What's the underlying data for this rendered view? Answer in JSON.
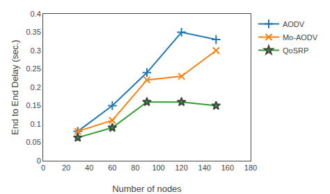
{
  "chart_data": {
    "type": "line",
    "x": [
      30,
      60,
      90,
      120,
      150
    ],
    "series": [
      {
        "name": "AODV",
        "values": [
          0.08,
          0.15,
          0.24,
          0.35,
          0.33
        ],
        "marker": "plus"
      },
      {
        "name": "Mo-AODV",
        "values": [
          0.08,
          0.11,
          0.22,
          0.23,
          0.3
        ],
        "marker": "x"
      },
      {
        "name": "QoSRP",
        "values": [
          0.063,
          0.09,
          0.16,
          0.16,
          0.15
        ],
        "marker": "star"
      }
    ],
    "xlabel": "Number of nodes",
    "ylabel": "End to End Delay (sec.)",
    "xlim": [
      0,
      180
    ],
    "ylim": [
      0,
      0.4
    ],
    "xticks": [
      0,
      20,
      40,
      60,
      80,
      100,
      120,
      140,
      160,
      180
    ],
    "yticks": [
      0,
      0.05,
      0.1,
      0.15,
      0.2,
      0.25,
      0.3,
      0.35,
      0.4
    ],
    "grid": false,
    "legend": "upper right"
  }
}
